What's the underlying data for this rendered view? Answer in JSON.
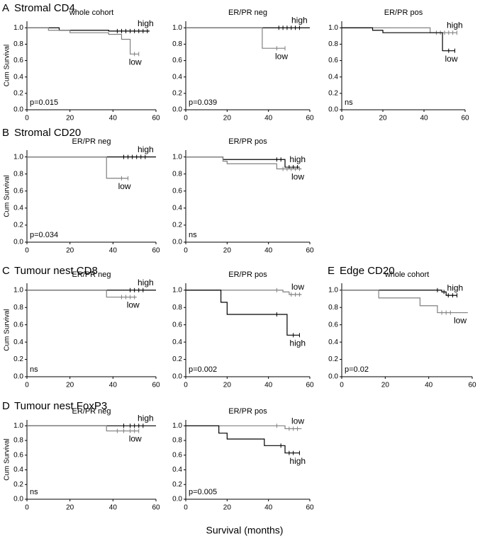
{
  "xlabel": "Survival (months)",
  "sections": [
    {
      "label": "A",
      "title": "Stromal CD4"
    },
    {
      "label": "B",
      "title": "Stromal CD20"
    },
    {
      "label": "C",
      "title": "Tumour nest CD8"
    },
    {
      "label": "D",
      "title": "Tumour nest FoxP3"
    },
    {
      "label": "E",
      "title": "Edge CD20"
    }
  ],
  "chart_data": [
    {
      "type": "step",
      "title": "whole cohort",
      "ylabel": "Cum Survival",
      "annotation": "p=0.015",
      "xlim": [
        0,
        60
      ],
      "xticks": [
        0,
        20,
        40,
        60
      ],
      "ylim": [
        0,
        1.08
      ],
      "yticks": [
        {
          "value": 0,
          "label": "0.0"
        },
        {
          "value": 0.2,
          "label": "0.2"
        },
        {
          "value": 0.4,
          "label": "0.4"
        },
        {
          "value": 0.6,
          "label": "0.6"
        },
        {
          "value": 0.8,
          "label": "0.8"
        },
        {
          "value": 1,
          "label": "1.0"
        }
      ],
      "series": [
        {
          "name": "high",
          "color": "#000000",
          "x": [
            0,
            15,
            38,
            57
          ],
          "values": [
            1,
            0.97,
            0.96,
            0.96
          ],
          "censored": [
            42,
            44,
            46,
            48,
            50,
            52,
            54,
            56
          ]
        },
        {
          "name": "low",
          "color": "#808080",
          "x": [
            0,
            10,
            20,
            38,
            44,
            48,
            52
          ],
          "values": [
            1,
            0.97,
            0.94,
            0.92,
            0.86,
            0.68,
            0.68
          ],
          "censored": [
            50,
            52
          ]
        }
      ]
    },
    {
      "type": "step",
      "title": "ER/PR neg",
      "annotation": "p=0.039",
      "xlim": [
        0,
        60
      ],
      "xticks": [
        0,
        20,
        40,
        60
      ],
      "ylim": [
        0,
        1.08
      ],
      "yticks": [
        {
          "value": 0,
          "label": "0.0"
        },
        {
          "value": 0.2,
          "label": "0.2"
        },
        {
          "value": 0.4,
          "label": "0.4"
        },
        {
          "value": 0.6,
          "label": "0.6"
        },
        {
          "value": 0.8,
          "label": "0.8"
        },
        {
          "value": 1,
          "label": "1.0"
        }
      ],
      "series": [
        {
          "name": "high",
          "color": "#000000",
          "x": [
            0,
            60
          ],
          "values": [
            1,
            1
          ],
          "censored": [
            45,
            47,
            49,
            51,
            53,
            55
          ]
        },
        {
          "name": "low",
          "color": "#808080",
          "x": [
            0,
            37,
            48
          ],
          "values": [
            1,
            0.75,
            0.75
          ],
          "censored": [
            44,
            48
          ]
        }
      ]
    },
    {
      "type": "step",
      "title": "ER/PR pos",
      "annotation": "ns",
      "xlim": [
        0,
        60
      ],
      "xticks": [
        0,
        20,
        40,
        60
      ],
      "ylim": [
        0,
        1.08
      ],
      "yticks": [
        {
          "value": 0,
          "label": "0.0"
        },
        {
          "value": 0.2,
          "label": "0.2"
        },
        {
          "value": 0.4,
          "label": "0.4"
        },
        {
          "value": 0.6,
          "label": "0.6"
        },
        {
          "value": 0.8,
          "label": "0.8"
        },
        {
          "value": 1,
          "label": "1.0"
        }
      ],
      "series": [
        {
          "name": "high",
          "color": "#808080",
          "x": [
            0,
            43,
            56
          ],
          "values": [
            1,
            0.94,
            0.94
          ],
          "censored": [
            46,
            48,
            50,
            52,
            54,
            56
          ]
        },
        {
          "name": "low",
          "color": "#000000",
          "x": [
            0,
            15,
            20,
            49,
            55
          ],
          "values": [
            1,
            0.97,
            0.94,
            0.72,
            0.72
          ],
          "censored": [
            52,
            55
          ]
        }
      ]
    },
    {
      "type": "step",
      "title": "ER/PR neg",
      "ylabel": "Cum Survival",
      "annotation": "p=0.034",
      "xlim": [
        0,
        60
      ],
      "xticks": [
        0,
        20,
        40,
        60
      ],
      "ylim": [
        0,
        1.08
      ],
      "yticks": [
        {
          "value": 0,
          "label": "0.0"
        },
        {
          "value": 0.2,
          "label": "0.2"
        },
        {
          "value": 0.4,
          "label": "0.4"
        },
        {
          "value": 0.6,
          "label": "0.6"
        },
        {
          "value": 0.8,
          "label": "0.8"
        },
        {
          "value": 1,
          "label": "1.0"
        }
      ],
      "series": [
        {
          "name": "high",
          "color": "#000000",
          "x": [
            0,
            60
          ],
          "values": [
            1,
            1
          ],
          "censored": [
            45,
            47,
            49,
            51,
            53,
            55
          ]
        },
        {
          "name": "low",
          "color": "#808080",
          "x": [
            0,
            37,
            47
          ],
          "values": [
            1,
            0.75,
            0.75
          ],
          "censored": [
            44,
            47
          ]
        }
      ]
    },
    {
      "type": "step",
      "title": "ER/PR pos",
      "annotation": "ns",
      "xlim": [
        0,
        60
      ],
      "xticks": [
        0,
        20,
        40,
        60
      ],
      "ylim": [
        0,
        1.08
      ],
      "yticks": [
        {
          "value": 0,
          "label": "0.0"
        },
        {
          "value": 0.2,
          "label": "0.2"
        },
        {
          "value": 0.4,
          "label": "0.4"
        },
        {
          "value": 0.6,
          "label": "0.6"
        },
        {
          "value": 0.8,
          "label": "0.8"
        },
        {
          "value": 1,
          "label": "1.0"
        }
      ],
      "series": [
        {
          "name": "high",
          "color": "#000000",
          "x": [
            0,
            18,
            48,
            55
          ],
          "values": [
            1,
            0.97,
            0.88,
            0.88
          ],
          "censored": [
            44,
            46,
            50,
            52,
            54
          ]
        },
        {
          "name": "low",
          "color": "#808080",
          "x": [
            0,
            18,
            20,
            44,
            56
          ],
          "values": [
            1,
            0.95,
            0.92,
            0.86,
            0.86
          ],
          "censored": [
            47,
            49,
            51,
            53,
            55
          ]
        }
      ]
    },
    {
      "type": "step",
      "title": "ER/PR neg",
      "ylabel": "Cum Survival",
      "annotation": "ns",
      "xlim": [
        0,
        60
      ],
      "xticks": [
        0,
        20,
        40,
        60
      ],
      "ylim": [
        0,
        1.08
      ],
      "yticks": [
        {
          "value": 0,
          "label": "0.0"
        },
        {
          "value": 0.2,
          "label": "0.2"
        },
        {
          "value": 0.4,
          "label": "0.4"
        },
        {
          "value": 0.6,
          "label": "0.6"
        },
        {
          "value": 0.8,
          "label": "0.8"
        },
        {
          "value": 1,
          "label": "1.0"
        }
      ],
      "series": [
        {
          "name": "high",
          "color": "#000000",
          "x": [
            0,
            60
          ],
          "values": [
            1,
            1
          ],
          "censored": [
            48,
            50,
            52,
            54
          ]
        },
        {
          "name": "low",
          "color": "#808080",
          "x": [
            0,
            37,
            51
          ],
          "values": [
            1,
            0.92,
            0.92
          ],
          "censored": [
            44,
            46,
            48,
            50
          ]
        }
      ]
    },
    {
      "type": "step",
      "title": "ER/PR pos",
      "annotation": "p=0.002",
      "xlim": [
        0,
        60
      ],
      "xticks": [
        0,
        20,
        40,
        60
      ],
      "ylim": [
        0,
        1.08
      ],
      "yticks": [
        {
          "value": 0,
          "label": "0.0"
        },
        {
          "value": 0.2,
          "label": "0.2"
        },
        {
          "value": 0.4,
          "label": "0.4"
        },
        {
          "value": 0.6,
          "label": "0.6"
        },
        {
          "value": 0.8,
          "label": "0.8"
        },
        {
          "value": 1,
          "label": "1.0"
        }
      ],
      "series": [
        {
          "name": "low",
          "color": "#808080",
          "x": [
            0,
            47,
            50,
            56
          ],
          "values": [
            1,
            0.98,
            0.95,
            0.95
          ],
          "censored": [
            44,
            51,
            53,
            55
          ]
        },
        {
          "name": "high",
          "color": "#000000",
          "x": [
            0,
            17,
            20,
            49,
            55
          ],
          "values": [
            1,
            0.86,
            0.72,
            0.48,
            0.48
          ],
          "censored": [
            44,
            52,
            55
          ]
        }
      ]
    },
    {
      "type": "step",
      "title": "ER/PR neg",
      "ylabel": "Cum Survival",
      "annotation": "ns",
      "xlim": [
        0,
        60
      ],
      "xticks": [
        0,
        20,
        40,
        60
      ],
      "ylim": [
        0,
        1.08
      ],
      "yticks": [
        {
          "value": 0,
          "label": "0.0"
        },
        {
          "value": 0.2,
          "label": "0.2"
        },
        {
          "value": 0.4,
          "label": "0.4"
        },
        {
          "value": 0.6,
          "label": "0.6"
        },
        {
          "value": 0.8,
          "label": "0.8"
        },
        {
          "value": 1,
          "label": "1.0"
        }
      ],
      "series": [
        {
          "name": "high",
          "color": "#000000",
          "x": [
            0,
            60
          ],
          "values": [
            1,
            1
          ],
          "censored": [
            45,
            48,
            50,
            52,
            54
          ]
        },
        {
          "name": "low",
          "color": "#808080",
          "x": [
            0,
            37,
            52
          ],
          "values": [
            1,
            0.93,
            0.93
          ],
          "censored": [
            42,
            45,
            48,
            50,
            52
          ]
        }
      ]
    },
    {
      "type": "step",
      "title": "ER/PR pos",
      "annotation": "p=0.005",
      "xlim": [
        0,
        60
      ],
      "xticks": [
        0,
        20,
        40,
        60
      ],
      "ylim": [
        0,
        1.08
      ],
      "yticks": [
        {
          "value": 0,
          "label": "0.0"
        },
        {
          "value": 0.2,
          "label": "0.2"
        },
        {
          "value": 0.4,
          "label": "0.4"
        },
        {
          "value": 0.6,
          "label": "0.6"
        },
        {
          "value": 0.8,
          "label": "0.8"
        },
        {
          "value": 1,
          "label": "1.0"
        }
      ],
      "series": [
        {
          "name": "low",
          "color": "#808080",
          "x": [
            0,
            48,
            56
          ],
          "values": [
            1,
            0.96,
            0.96
          ],
          "censored": [
            44,
            50,
            52,
            54
          ]
        },
        {
          "name": "high",
          "color": "#000000",
          "x": [
            0,
            16,
            20,
            38,
            48,
            55
          ],
          "values": [
            1,
            0.9,
            0.82,
            0.73,
            0.63,
            0.63
          ],
          "censored": [
            46,
            50,
            52,
            55
          ]
        }
      ]
    },
    {
      "type": "step",
      "title": "whole cohort",
      "annotation": "p=0.02",
      "xlim": [
        0,
        60
      ],
      "xticks": [
        0,
        20,
        40,
        60
      ],
      "ylim": [
        0,
        1.08
      ],
      "yticks": [
        {
          "value": 0,
          "label": "0.0"
        },
        {
          "value": 0.2,
          "label": "0.2"
        },
        {
          "value": 0.4,
          "label": "0.4"
        },
        {
          "value": 0.6,
          "label": "0.6"
        },
        {
          "value": 0.8,
          "label": "0.8"
        },
        {
          "value": 1,
          "label": "1.0"
        }
      ],
      "series": [
        {
          "name": "high",
          "color": "#000000",
          "x": [
            0,
            46,
            48,
            53
          ],
          "values": [
            1,
            0.98,
            0.94,
            0.94
          ],
          "censored": [
            44,
            47,
            49,
            51,
            53
          ]
        },
        {
          "name": "low",
          "color": "#808080",
          "x": [
            0,
            17,
            36,
            44,
            58
          ],
          "values": [
            1,
            0.91,
            0.82,
            0.74,
            0.74
          ],
          "censored": [
            46,
            48,
            50
          ]
        }
      ]
    }
  ]
}
